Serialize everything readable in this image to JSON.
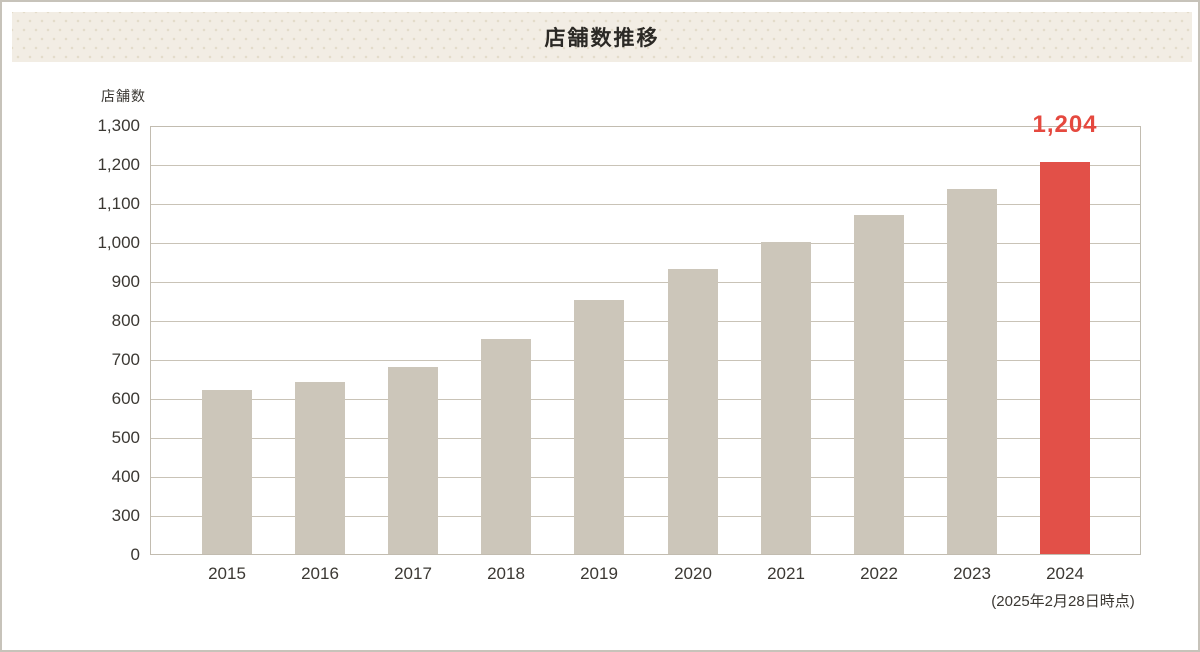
{
  "page": {
    "title": "店舗数推移"
  },
  "chart_data": {
    "type": "bar",
    "title": "店舗数推移",
    "y_axis_unit": "店舗数",
    "categories": [
      "2015",
      "2016",
      "2017",
      "2018",
      "2019",
      "2020",
      "2021",
      "2022",
      "2023",
      "2024"
    ],
    "values": [
      620,
      640,
      680,
      750,
      850,
      930,
      1000,
      1070,
      1135,
      1204
    ],
    "highlight_index": 9,
    "data_label": {
      "text": "1,204",
      "applies_to": "2024"
    },
    "annotation": "(2025年2月28日時点)",
    "y_ticks": [
      "1,300",
      "1,200",
      "1,100",
      "1,000",
      "900",
      "800",
      "700",
      "600",
      "500",
      "400",
      "300",
      "0"
    ],
    "y_axis": {
      "tick_interval": 100,
      "broken_axis_range": [
        0,
        300
      ],
      "max": 1300,
      "min": 0
    },
    "legend": "none",
    "grid": "horizontal",
    "colors": {
      "bar": "#ccc6ba",
      "highlight_bar": "#e25048",
      "value_label_text": "#e5493f",
      "grid_line": "#c9c3b7",
      "plot_border": "#c2bcb0",
      "text": "#3b3833",
      "header_background": "#f2ede4",
      "header_dots": "#e3dcca"
    }
  }
}
